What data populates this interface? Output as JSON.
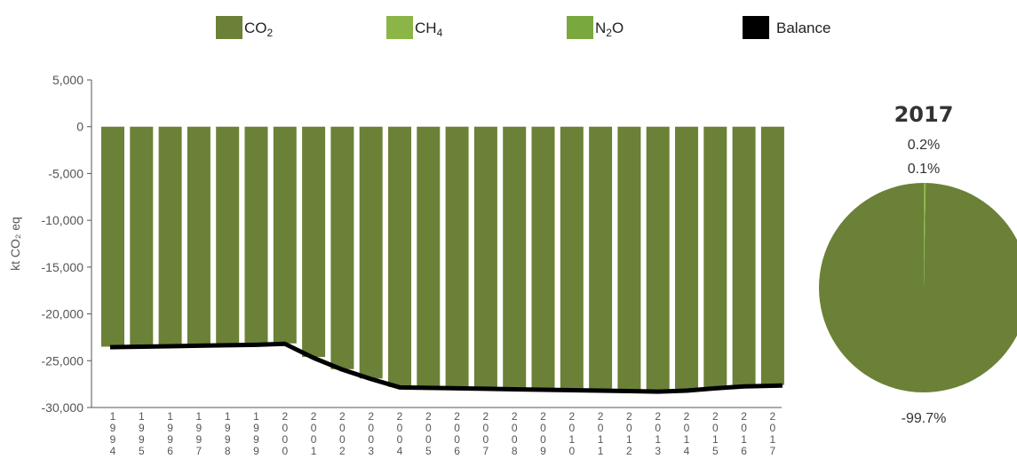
{
  "legend": [
    {
      "label": "CO",
      "sub": "2",
      "color": "#6b8137"
    },
    {
      "label": "CH",
      "sub": "4",
      "color": "#8cb548"
    },
    {
      "label": "N",
      "sub": "2",
      "label2": "O",
      "color": "#7aa83f"
    },
    {
      "label": "Balance",
      "sub": "",
      "color": "#000000"
    }
  ],
  "chart_data": [
    {
      "type": "bar",
      "ylabel": "kt CO₂ eq",
      "ylim": [
        -30000,
        5000
      ],
      "yticks": [
        "5,000",
        "0",
        "-5,000",
        "-10,000",
        "-15,000",
        "-20,000",
        "-25,000",
        "-30,000"
      ],
      "categories": [
        "1994",
        "1995",
        "1996",
        "1997",
        "1998",
        "1999",
        "2000",
        "2001",
        "2002",
        "2003",
        "2004",
        "2005",
        "2006",
        "2007",
        "2008",
        "2009",
        "2010",
        "2011",
        "2012",
        "2013",
        "2014",
        "2015",
        "2016",
        "2017"
      ],
      "series": [
        {
          "name": "CO₂",
          "color": "#6b8137",
          "values": [
            -23500,
            -23450,
            -23400,
            -23300,
            -23250,
            -23200,
            -23150,
            -24600,
            -25900,
            -26900,
            -27800,
            -27850,
            -27900,
            -27950,
            -28000,
            -28050,
            -28100,
            -28150,
            -28200,
            -28250,
            -28150,
            -27900,
            -27700,
            -27600
          ]
        },
        {
          "name": "Balance",
          "type": "line",
          "color": "#000000",
          "values": [
            -23550,
            -23500,
            -23450,
            -23400,
            -23350,
            -23300,
            -23200,
            -24700,
            -25950,
            -26950,
            -27850,
            -27900,
            -27950,
            -28000,
            -28050,
            -28100,
            -28150,
            -28200,
            -28250,
            -28300,
            -28200,
            -27950,
            -27750,
            -27650
          ]
        }
      ],
      "grid": false
    },
    {
      "type": "pie",
      "title": "2017",
      "slices": [
        {
          "name": "CO₂",
          "value": -99.7,
          "label": "-99.7%",
          "color": "#6b8137"
        },
        {
          "name": "CH₄",
          "value": 0.2,
          "label": "0.2%",
          "color": "#8cb548"
        },
        {
          "name": "N₂O",
          "value": 0.1,
          "label": "0.1%",
          "color": "#7aa83f"
        }
      ]
    }
  ]
}
